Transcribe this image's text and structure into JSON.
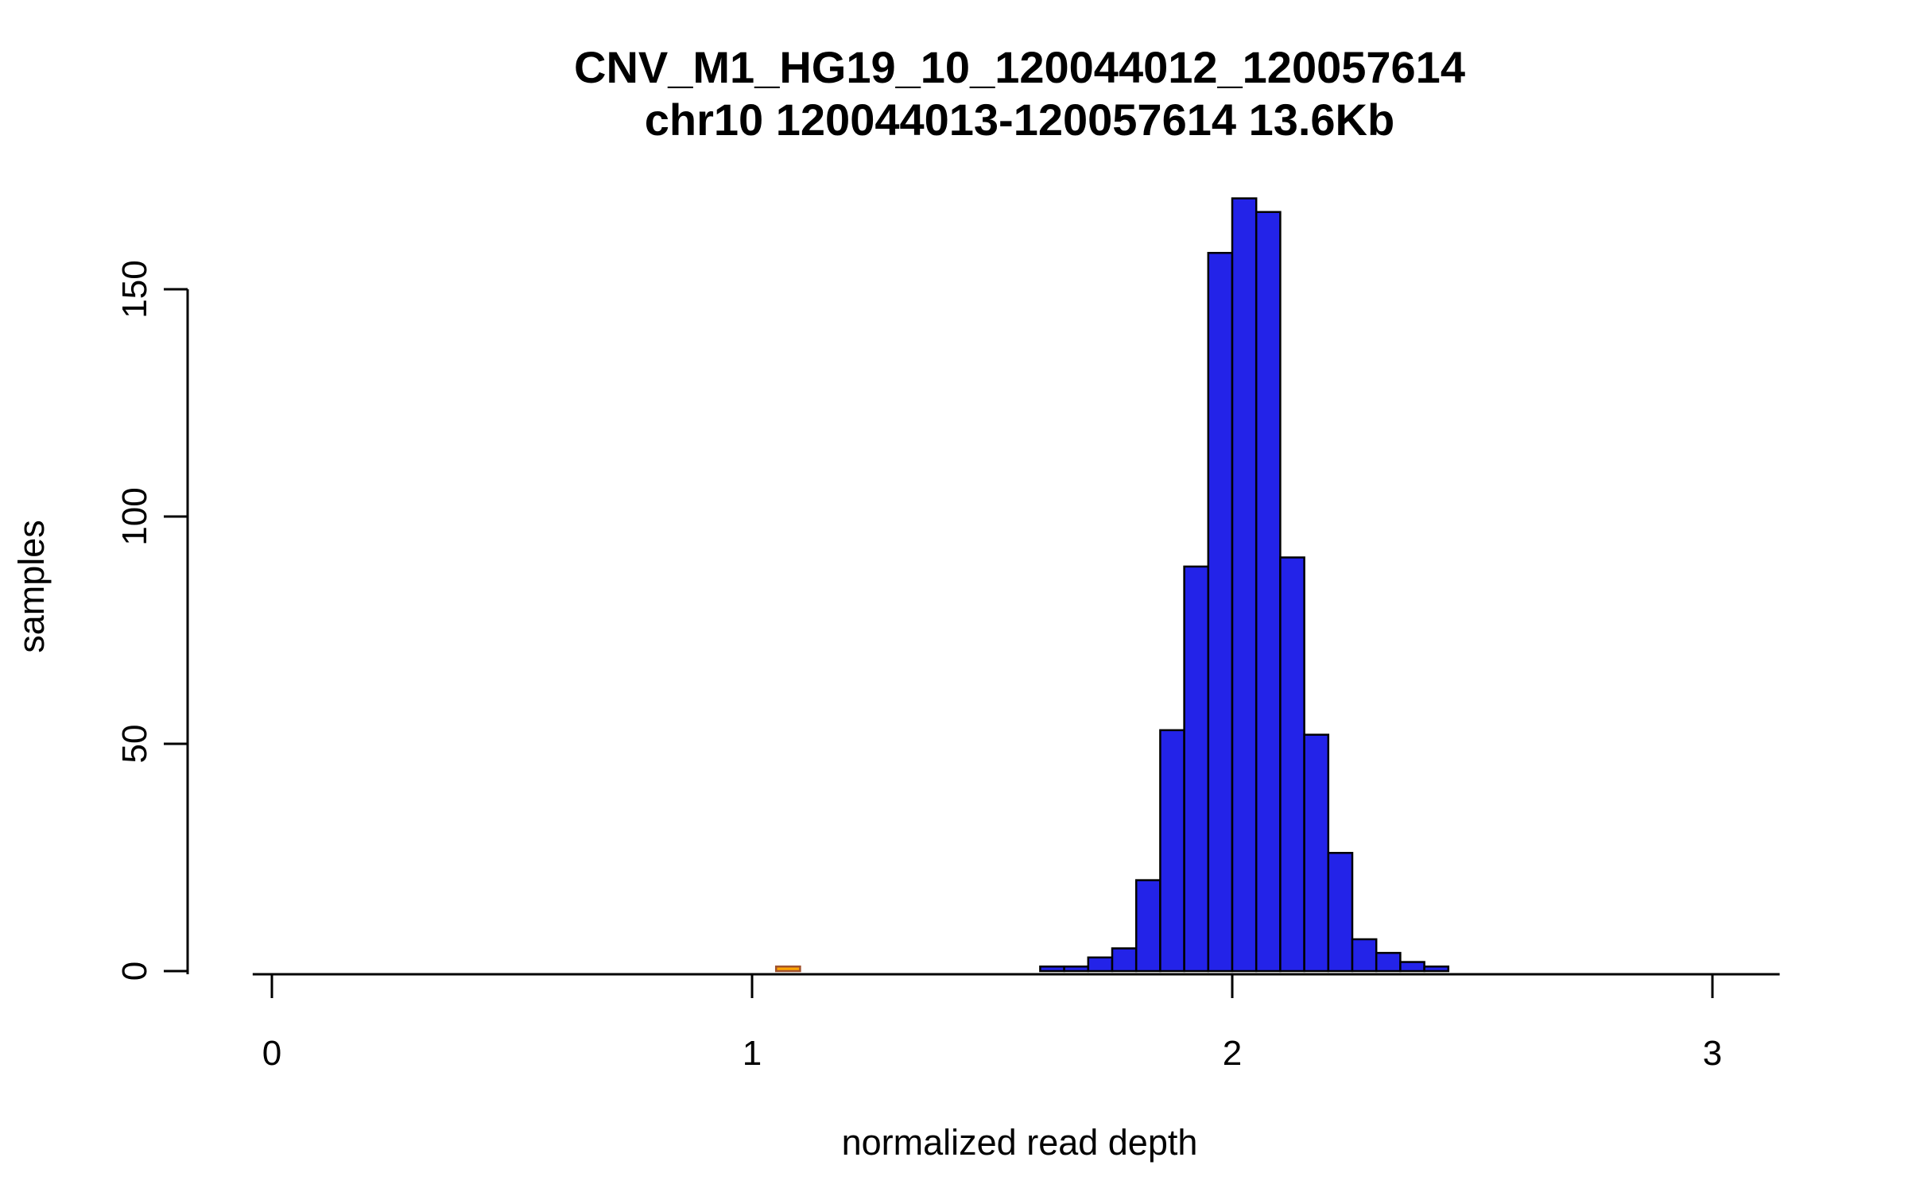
{
  "chart_data": {
    "type": "bar",
    "subtype": "histogram",
    "title": "CNV_M1_HG19_10_120044012_120057614",
    "subtitle": "chr10 120044013-120057614 13.6Kb",
    "xlabel": "normalized read depth",
    "ylabel": "samples",
    "x_ticks": [
      0,
      1,
      2,
      3
    ],
    "y_ticks": [
      0,
      50,
      100,
      150
    ],
    "xlim": [
      -0.04,
      3.14
    ],
    "ylim": [
      0,
      170
    ],
    "bin_width": 0.05,
    "legend": "none",
    "grid": false,
    "colors": {
      "bar_fill": "#2323E8",
      "bar_stroke": "#000000",
      "highlight_fill": "#FFA500",
      "highlight_stroke": "#A0522D",
      "axis": "#000000",
      "background": "#FFFFFF"
    },
    "bars": [
      {
        "x": 1.05,
        "count": 1,
        "highlight": true
      },
      {
        "x": 1.6,
        "count": 1
      },
      {
        "x": 1.65,
        "count": 1
      },
      {
        "x": 1.7,
        "count": 3
      },
      {
        "x": 1.75,
        "count": 5
      },
      {
        "x": 1.8,
        "count": 20
      },
      {
        "x": 1.85,
        "count": 53
      },
      {
        "x": 1.9,
        "count": 89
      },
      {
        "x": 1.95,
        "count": 158
      },
      {
        "x": 2.0,
        "count": 170
      },
      {
        "x": 2.05,
        "count": 167
      },
      {
        "x": 2.1,
        "count": 91
      },
      {
        "x": 2.15,
        "count": 52
      },
      {
        "x": 2.2,
        "count": 26
      },
      {
        "x": 2.25,
        "count": 7
      },
      {
        "x": 2.3,
        "count": 4
      },
      {
        "x": 2.35,
        "count": 2
      },
      {
        "x": 2.4,
        "count": 1
      }
    ]
  }
}
